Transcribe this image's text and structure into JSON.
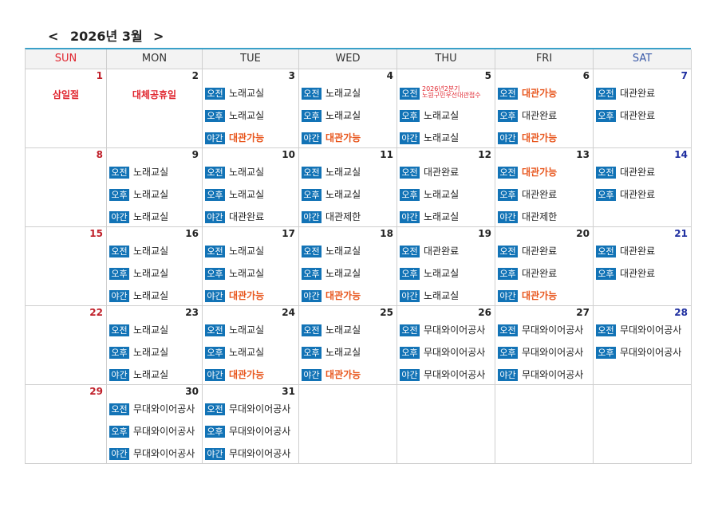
{
  "header": {
    "prev": "<",
    "title": "2026년 3월",
    "next": ">"
  },
  "weekdays": [
    "SUN",
    "MON",
    "TUE",
    "WED",
    "THU",
    "FRI",
    "SAT"
  ],
  "weeks": [
    {
      "days": [
        {
          "day": "1",
          "holiday": "삼일절"
        },
        {
          "day": "2",
          "holiday": "대체공휴일"
        },
        {
          "day": "3",
          "slots": [
            {
              "label": "오전",
              "text": "노래교실"
            },
            {
              "label": "오후",
              "text": "노래교실"
            },
            {
              "label": "야간",
              "text": "대관가능",
              "color": "#e8561d"
            }
          ]
        },
        {
          "day": "4",
          "slots": [
            {
              "label": "오전",
              "text": "노래교실"
            },
            {
              "label": "오후",
              "text": "노래교실"
            },
            {
              "label": "야간",
              "text": "대관가능",
              "color": "#e8561d"
            }
          ]
        },
        {
          "day": "5",
          "slots": [
            {
              "label": "오전",
              "lines": [
                "2026년2분기",
                "노원구민우선대관접수"
              ],
              "color": "#e0262f"
            },
            {
              "label": "오후",
              "text": "노래교실"
            },
            {
              "label": "야간",
              "text": "노래교실"
            }
          ]
        },
        {
          "day": "6",
          "slots": [
            {
              "label": "오전",
              "text": "대관가능",
              "color": "#e8561d"
            },
            {
              "label": "오후",
              "text": "대관완료"
            },
            {
              "label": "야간",
              "text": "대관가능",
              "color": "#e8561d"
            }
          ]
        },
        {
          "day": "7",
          "slots": [
            {
              "label": "오전",
              "text": "대관완료"
            },
            {
              "label": "오후",
              "text": "대관완료"
            }
          ]
        }
      ]
    },
    {
      "days": [
        {
          "day": "8"
        },
        {
          "day": "9",
          "slots": [
            {
              "label": "오전",
              "text": "노래교실"
            },
            {
              "label": "오후",
              "text": "노래교실"
            },
            {
              "label": "야간",
              "text": "노래교실"
            }
          ]
        },
        {
          "day": "10",
          "slots": [
            {
              "label": "오전",
              "text": "노래교실"
            },
            {
              "label": "오후",
              "text": "노래교실"
            },
            {
              "label": "야간",
              "text": "대관완료"
            }
          ]
        },
        {
          "day": "11",
          "slots": [
            {
              "label": "오전",
              "text": "노래교실"
            },
            {
              "label": "오후",
              "text": "노래교실"
            },
            {
              "label": "야간",
              "text": "대관제한"
            }
          ]
        },
        {
          "day": "12",
          "slots": [
            {
              "label": "오전",
              "text": "대관완료"
            },
            {
              "label": "오후",
              "text": "노래교실"
            },
            {
              "label": "야간",
              "text": "노래교실"
            }
          ]
        },
        {
          "day": "13",
          "slots": [
            {
              "label": "오전",
              "text": "대관가능",
              "color": "#e8561d"
            },
            {
              "label": "오후",
              "text": "대관완료"
            },
            {
              "label": "야간",
              "text": "대관제한"
            }
          ]
        },
        {
          "day": "14",
          "slots": [
            {
              "label": "오전",
              "text": "대관완료"
            },
            {
              "label": "오후",
              "text": "대관완료"
            }
          ]
        }
      ]
    },
    {
      "days": [
        {
          "day": "15"
        },
        {
          "day": "16",
          "slots": [
            {
              "label": "오전",
              "text": "노래교실"
            },
            {
              "label": "오후",
              "text": "노래교실"
            },
            {
              "label": "야간",
              "text": "노래교실"
            }
          ]
        },
        {
          "day": "17",
          "slots": [
            {
              "label": "오전",
              "text": "노래교실"
            },
            {
              "label": "오후",
              "text": "노래교실"
            },
            {
              "label": "야간",
              "text": "대관가능",
              "color": "#e8561d"
            }
          ]
        },
        {
          "day": "18",
          "slots": [
            {
              "label": "오전",
              "text": "노래교실"
            },
            {
              "label": "오후",
              "text": "노래교실"
            },
            {
              "label": "야간",
              "text": "대관가능",
              "color": "#e8561d"
            }
          ]
        },
        {
          "day": "19",
          "slots": [
            {
              "label": "오전",
              "text": "대관완료"
            },
            {
              "label": "오후",
              "text": "노래교실"
            },
            {
              "label": "야간",
              "text": "노래교실"
            }
          ]
        },
        {
          "day": "20",
          "slots": [
            {
              "label": "오전",
              "text": "대관완료"
            },
            {
              "label": "오후",
              "text": "대관완료"
            },
            {
              "label": "야간",
              "text": "대관가능",
              "color": "#e8561d"
            }
          ]
        },
        {
          "day": "21",
          "slots": [
            {
              "label": "오전",
              "text": "대관완료"
            },
            {
              "label": "오후",
              "text": "대관완료"
            }
          ]
        }
      ]
    },
    {
      "days": [
        {
          "day": "22"
        },
        {
          "day": "23",
          "slots": [
            {
              "label": "오전",
              "text": "노래교실"
            },
            {
              "label": "오후",
              "text": "노래교실"
            },
            {
              "label": "야간",
              "text": "노래교실"
            }
          ]
        },
        {
          "day": "24",
          "slots": [
            {
              "label": "오전",
              "text": "노래교실"
            },
            {
              "label": "오후",
              "text": "노래교실"
            },
            {
              "label": "야간",
              "text": "대관가능",
              "color": "#e8561d"
            }
          ]
        },
        {
          "day": "25",
          "slots": [
            {
              "label": "오전",
              "text": "노래교실"
            },
            {
              "label": "오후",
              "text": "노래교실"
            },
            {
              "label": "야간",
              "text": "대관가능",
              "color": "#e8561d"
            }
          ]
        },
        {
          "day": "26",
          "slots": [
            {
              "label": "오전",
              "text": "무대와이어공사"
            },
            {
              "label": "오후",
              "text": "무대와이어공사"
            },
            {
              "label": "야간",
              "text": "무대와이어공사"
            }
          ]
        },
        {
          "day": "27",
          "slots": [
            {
              "label": "오전",
              "text": "무대와이어공사"
            },
            {
              "label": "오후",
              "text": "무대와이어공사"
            },
            {
              "label": "야간",
              "text": "무대와이어공사"
            }
          ]
        },
        {
          "day": "28",
          "slots": [
            {
              "label": "오전",
              "text": "무대와이어공사"
            },
            {
              "label": "오후",
              "text": "무대와이어공사"
            }
          ]
        }
      ]
    },
    {
      "days": [
        {
          "day": "29"
        },
        {
          "day": "30",
          "slots": [
            {
              "label": "오전",
              "text": "무대와이어공사"
            },
            {
              "label": "오후",
              "text": "무대와이어공사"
            },
            {
              "label": "야간",
              "text": "무대와이어공사"
            }
          ]
        },
        {
          "day": "31",
          "slots": [
            {
              "label": "오전",
              "text": "무대와이어공사"
            },
            {
              "label": "오후",
              "text": "무대와이어공사"
            },
            {
              "label": "야간",
              "text": "무대와이어공사"
            }
          ]
        }
      ]
    }
  ]
}
